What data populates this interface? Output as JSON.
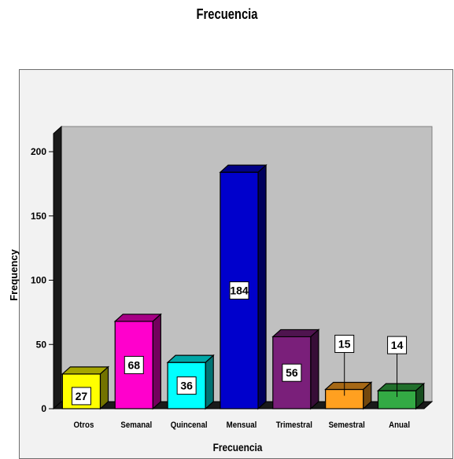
{
  "chart_data": {
    "type": "bar",
    "title": "Frecuencia",
    "xlabel": "Frecuencia",
    "ylabel": "Frequency",
    "categories": [
      "Otros",
      "Semanal",
      "Quincenal",
      "Mensual",
      "Trimestral",
      "Semestral",
      "Anual"
    ],
    "values": [
      27,
      68,
      36,
      184,
      56,
      15,
      14
    ],
    "colors": [
      "#ffff00",
      "#ff00cc",
      "#00ffff",
      "#0000cc",
      "#7a1f7a",
      "#ffa020",
      "#33aa44"
    ],
    "ylim": [
      0,
      200
    ],
    "yticks": [
      0,
      50,
      100,
      150,
      200
    ],
    "style": "3d-bar",
    "data_labels": true,
    "legend": "none",
    "grid": false,
    "wall_color": "#c0c0c0"
  }
}
